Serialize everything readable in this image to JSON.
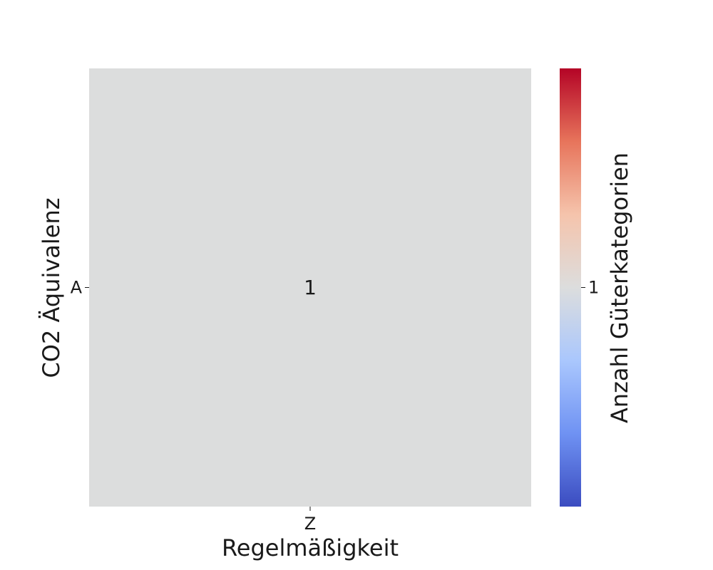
{
  "chart_data": {
    "type": "heatmap",
    "title": "",
    "xlabel": "Regelmäßigkeit",
    "ylabel": "CO2 Äquivalenz",
    "x_categories": [
      "Z"
    ],
    "y_categories": [
      "A"
    ],
    "values": [
      [
        1
      ]
    ],
    "cell_labels": [
      [
        "1"
      ]
    ],
    "colormap": "coolwarm",
    "cell_color": "#dcdddd",
    "colorbar": {
      "label": "Anzahl Güterkategorien",
      "ticks": [
        1
      ],
      "tick_labels": [
        "1"
      ],
      "colors": [
        "#b40426",
        "#e7745b",
        "#f5c4ac",
        "#dcdddd",
        "#aac7fd",
        "#6f92f3",
        "#3b4cc0"
      ]
    }
  }
}
